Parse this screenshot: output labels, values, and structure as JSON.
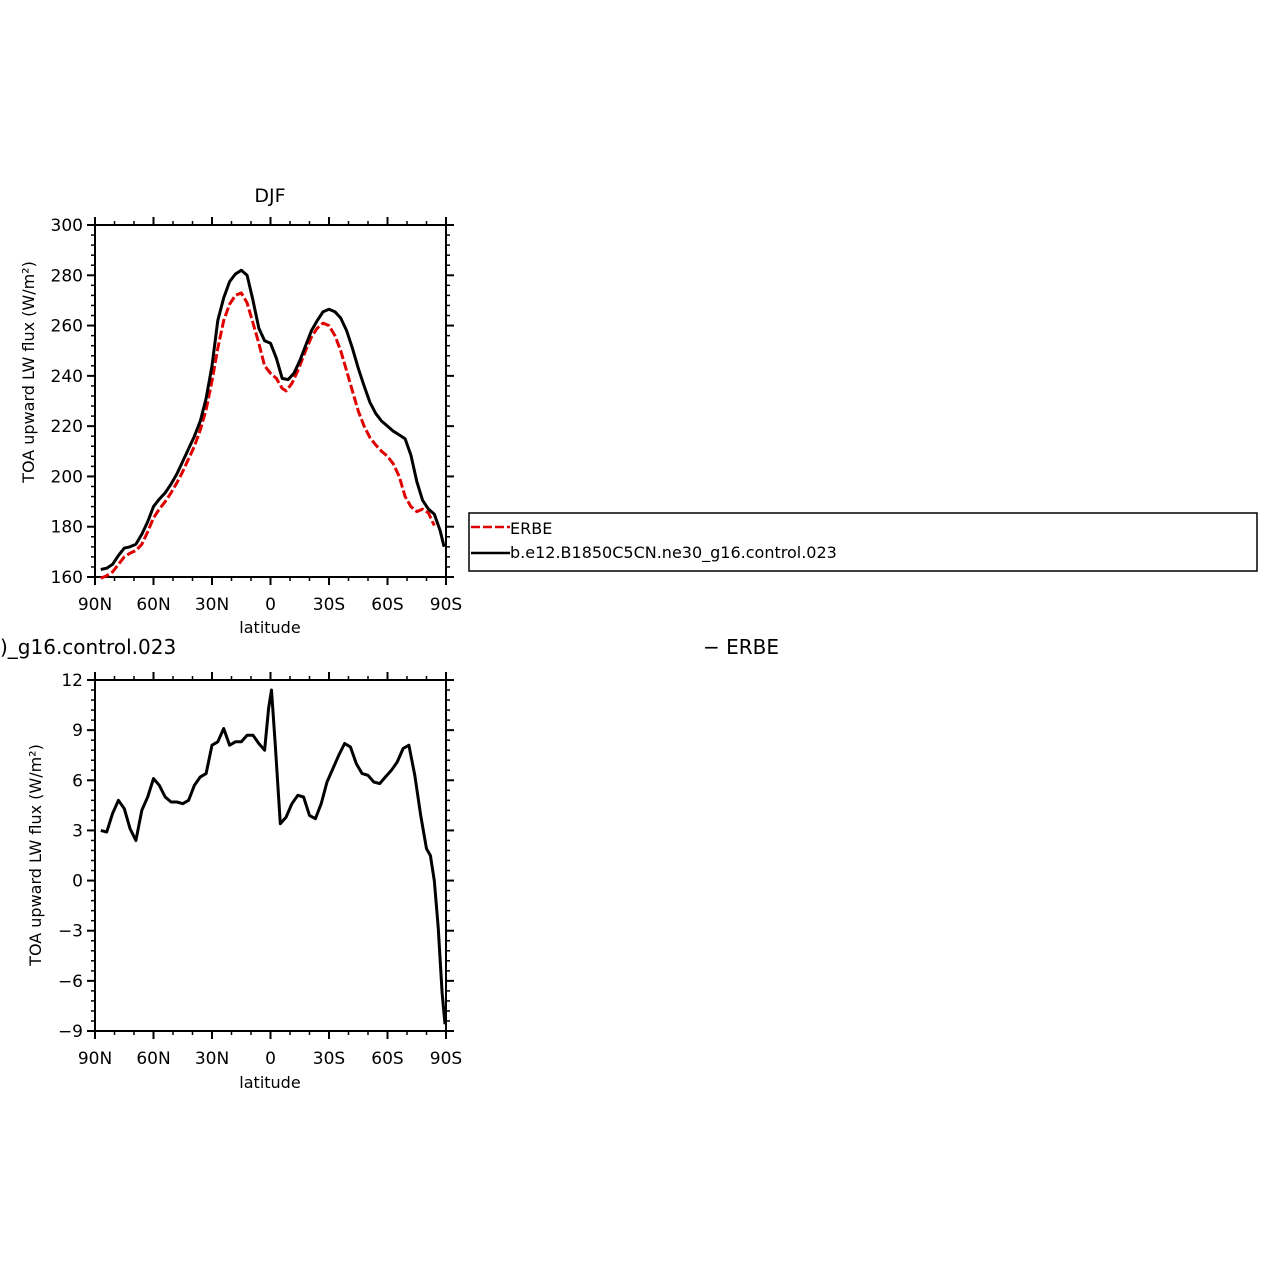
{
  "chart_data": [
    {
      "type": "line",
      "title": "DJF",
      "xlabel": "latitude",
      "ylabel": "TOA upward LW flux (W/m²)",
      "xlim": [
        90,
        -90
      ],
      "ylim": [
        160,
        300
      ],
      "yticks": [
        160,
        180,
        200,
        220,
        240,
        260,
        280,
        300
      ],
      "xticks": [
        90,
        60,
        30,
        0,
        -30,
        -60,
        -90
      ],
      "xtick_labels": [
        "90N",
        "60N",
        "30N",
        "0",
        "30S",
        "60S",
        "90S"
      ],
      "legend": "right",
      "series": [
        {
          "name": "ERBE",
          "color": "#e00000",
          "style": "dashed",
          "points": [
            [
              87,
              159.5
            ],
            [
              84,
              160.5
            ],
            [
              81,
              162
            ],
            [
              78,
              165
            ],
            [
              75,
              168
            ],
            [
              72,
              169.5
            ],
            [
              69,
              170.5
            ],
            [
              66,
              173
            ],
            [
              63,
              178
            ],
            [
              60,
              183.5
            ],
            [
              57,
              187
            ],
            [
              54,
              190
            ],
            [
              51,
              193.5
            ],
            [
              48,
              197.5
            ],
            [
              45,
              202
            ],
            [
              42,
              207
            ],
            [
              39,
              212
            ],
            [
              36,
              218.5
            ],
            [
              33,
              226.5
            ],
            [
              30,
              238
            ],
            [
              27,
              251
            ],
            [
              24,
              262
            ],
            [
              21,
              268.5
            ],
            [
              18,
              272
            ],
            [
              15,
              273
            ],
            [
              12,
              269
            ],
            [
              9,
              261
            ],
            [
              6,
              253
            ],
            [
              3,
              244
            ],
            [
              0,
              241
            ],
            [
              -3,
              239
            ],
            [
              -6,
              235
            ],
            [
              -8,
              234
            ],
            [
              -11,
              237
            ],
            [
              -14,
              242
            ],
            [
              -18,
              250
            ],
            [
              -21,
              255.5
            ],
            [
              -24,
              259
            ],
            [
              -27,
              261
            ],
            [
              -30,
              260
            ],
            [
              -33,
              256
            ],
            [
              -36,
              250
            ],
            [
              -39,
              242
            ],
            [
              -42,
              234
            ],
            [
              -45,
              226
            ],
            [
              -48,
              220
            ],
            [
              -51,
              215.5
            ],
            [
              -54,
              212.5
            ],
            [
              -57,
              210
            ],
            [
              -60,
              208
            ],
            [
              -63,
              205
            ],
            [
              -66,
              200
            ],
            [
              -69,
              192
            ],
            [
              -72,
              188
            ],
            [
              -75,
              186
            ],
            [
              -78,
              187
            ],
            [
              -81,
              185.5
            ],
            [
              -84,
              180.5
            ]
          ]
        },
        {
          "name": "b.e12.B1850C5CN.ne30_g16.control.023",
          "color": "#000000",
          "style": "solid",
          "points": [
            [
              87,
              163
            ],
            [
              84,
              163.5
            ],
            [
              81,
              165
            ],
            [
              78,
              168.5
            ],
            [
              75,
              171.5
            ],
            [
              72,
              172
            ],
            [
              69,
              173
            ],
            [
              66,
              177
            ],
            [
              63,
              182
            ],
            [
              60,
              188
            ],
            [
              57,
              191
            ],
            [
              54,
              193.5
            ],
            [
              51,
              197
            ],
            [
              48,
              201
            ],
            [
              45,
              206
            ],
            [
              42,
              211
            ],
            [
              39,
              216
            ],
            [
              36,
              222
            ],
            [
              33,
              231
            ],
            [
              30,
              244
            ],
            [
              27,
              262
            ],
            [
              24,
              271
            ],
            [
              21,
              277.5
            ],
            [
              18,
              280.5
            ],
            [
              15,
              282
            ],
            [
              12,
              280
            ],
            [
              9,
              270
            ],
            [
              6,
              259
            ],
            [
              3,
              254
            ],
            [
              0,
              253
            ],
            [
              -3,
              247
            ],
            [
              -6,
              239
            ],
            [
              -9,
              238.5
            ],
            [
              -12,
              241
            ],
            [
              -15,
              246
            ],
            [
              -18,
              252
            ],
            [
              -21,
              258
            ],
            [
              -24,
              262
            ],
            [
              -27,
              265.5
            ],
            [
              -30,
              266.5
            ],
            [
              -33,
              265.5
            ],
            [
              -36,
              263
            ],
            [
              -39,
              258
            ],
            [
              -42,
              251
            ],
            [
              -45,
              243
            ],
            [
              -48,
              236
            ],
            [
              -51,
              229.5
            ],
            [
              -54,
              225
            ],
            [
              -57,
              222
            ],
            [
              -60,
              220
            ],
            [
              -63,
              218
            ],
            [
              -66,
              216.5
            ],
            [
              -69,
              215
            ],
            [
              -72,
              208.5
            ],
            [
              -75,
              198
            ],
            [
              -78,
              190.5
            ],
            [
              -81,
              187
            ],
            [
              -84,
              185
            ],
            [
              -87,
              178.5
            ],
            [
              -89,
              172
            ]
          ]
        }
      ]
    },
    {
      "type": "line",
      "title": ")_g16.control.023",
      "title_right": "− ERBE",
      "xlabel": "latitude",
      "ylabel": "TOA upward LW flux (W/m²)",
      "xlim": [
        90,
        -90
      ],
      "ylim": [
        -9,
        12
      ],
      "yticks": [
        -9,
        -6,
        -3,
        0,
        3,
        6,
        9,
        12
      ],
      "ytick_labels": [
        "−9",
        "−6",
        "−3",
        "0",
        "3",
        "6",
        "9",
        "12"
      ],
      "xticks": [
        90,
        60,
        30,
        0,
        -30,
        -60,
        -90
      ],
      "xtick_labels": [
        "90N",
        "60N",
        "30N",
        "0",
        "30S",
        "60S",
        "90S"
      ],
      "series": [
        {
          "color": "#000000",
          "style": "solid",
          "points": [
            [
              87,
              3
            ],
            [
              84,
              2.9
            ],
            [
              81,
              4
            ],
            [
              78,
              4.8
            ],
            [
              75,
              4.3
            ],
            [
              72,
              3.1
            ],
            [
              69,
              2.4
            ],
            [
              66,
              4.2
            ],
            [
              63,
              5
            ],
            [
              60,
              6.1
            ],
            [
              57,
              5.7
            ],
            [
              54,
              5
            ],
            [
              51,
              4.7
            ],
            [
              48,
              4.7
            ],
            [
              45,
              4.6
            ],
            [
              42,
              4.8
            ],
            [
              39,
              5.7
            ],
            [
              36,
              6.2
            ],
            [
              33,
              6.4
            ],
            [
              30,
              8.1
            ],
            [
              27,
              8.3
            ],
            [
              24,
              9.1
            ],
            [
              21,
              8.1
            ],
            [
              18,
              8.3
            ],
            [
              15,
              8.3
            ],
            [
              12,
              8.7
            ],
            [
              9,
              8.7
            ],
            [
              6,
              8.2
            ],
            [
              3,
              7.8
            ],
            [
              1,
              10.3
            ],
            [
              -0.5,
              11.4
            ],
            [
              -2.5,
              8
            ],
            [
              -5,
              3.4
            ],
            [
              -8,
              3.8
            ],
            [
              -11,
              4.6
            ],
            [
              -14,
              5.1
            ],
            [
              -17,
              5
            ],
            [
              -20,
              3.9
            ],
            [
              -23,
              3.7
            ],
            [
              -26,
              4.6
            ],
            [
              -29,
              5.9
            ],
            [
              -32,
              6.7
            ],
            [
              -35,
              7.5
            ],
            [
              -38,
              8.2
            ],
            [
              -41,
              8
            ],
            [
              -44,
              7
            ],
            [
              -47,
              6.4
            ],
            [
              -50,
              6.3
            ],
            [
              -53,
              5.9
            ],
            [
              -56,
              5.8
            ],
            [
              -59,
              6.2
            ],
            [
              -62,
              6.6
            ],
            [
              -65,
              7.1
            ],
            [
              -68,
              7.9
            ],
            [
              -71,
              8.1
            ],
            [
              -74,
              6.3
            ],
            [
              -77,
              3.9
            ],
            [
              -80,
              1.9
            ],
            [
              -82,
              1.5
            ],
            [
              -84,
              0
            ],
            [
              -86,
              -2.8
            ],
            [
              -88,
              -6.7
            ],
            [
              -89.5,
              -8.6
            ]
          ]
        }
      ]
    }
  ]
}
